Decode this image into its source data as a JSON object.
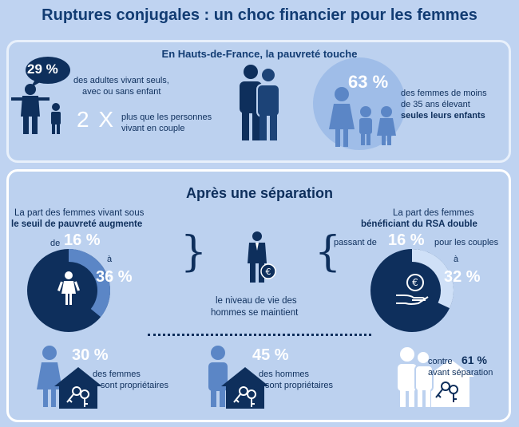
{
  "title": "Ruptures conjugales : un choc financier pour les femmes",
  "top": {
    "heading": "En Hauts-de-France, la pauvreté touche",
    "stat1_value": "29 %",
    "stat1_text_1": "des adultes vivant seuls,",
    "stat1_text_2": "avec ou sans enfant",
    "multiplier": "2 X",
    "multiplier_text_1": "plus que les personnes",
    "multiplier_text_2": "vivant en couple",
    "stat2_value": "63 %",
    "stat2_text_1": "des femmes de moins",
    "stat2_text_2": "de 35 ans élevant",
    "stat2_text_3": "seules leurs enfants"
  },
  "after": {
    "heading": "Après une séparation",
    "left_text_1": "La part des femmes vivant sous",
    "left_text_2": "le seuil de pauvreté augmente",
    "left_de": "de",
    "left_from": "16 %",
    "left_a": "à",
    "left_to": "36 %",
    "left_fraction": 0.36,
    "center_text_1": "le niveau de vie des",
    "center_text_2": "hommes se maintient",
    "right_text_1": "La part des femmes",
    "right_text_2": "bénéficiant du RSA double",
    "right_passant": "passant de",
    "right_from": "16 %",
    "right_couples": "pour les couples",
    "right_a": "à",
    "right_to": "32 %",
    "right_fraction": 0.32,
    "women_owners_value": "30 %",
    "women_owners_text_1": "des femmes",
    "women_owners_text_2": "sont propriétaires",
    "men_owners_value": "45 %",
    "men_owners_text_1": "des hommes",
    "men_owners_text_2": "sont propriétaires",
    "before_contre": "contre",
    "before_value": "61 %",
    "before_text": "avant séparation"
  },
  "colors": {
    "dark_navy": "#0e2f5c",
    "mid_blue": "#5b86c6",
    "light_blue": "#9fbde8",
    "panel_bg": "#bcd1ef"
  }
}
